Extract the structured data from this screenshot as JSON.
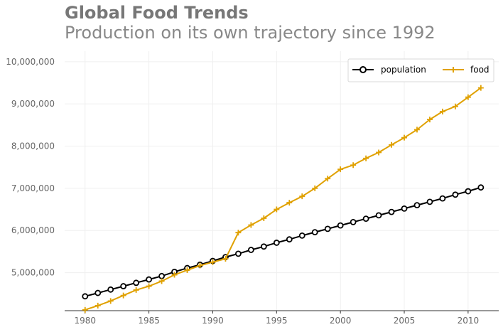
{
  "colors": {
    "title": "#777777",
    "subtitle": "#888888",
    "axis_text": "#666666",
    "grid": "#efefef",
    "axis": "#333333",
    "legend_border": "#d8d8d8",
    "population": "#000000",
    "food": "#e0a100"
  },
  "chart_data": {
    "type": "line",
    "title": "Global Food Trends",
    "subtitle": "Production on its own trajectory since 1992",
    "xlabel": "",
    "ylabel": "",
    "x": [
      1980,
      1981,
      1982,
      1983,
      1984,
      1985,
      1986,
      1987,
      1988,
      1989,
      1990,
      1991,
      1992,
      1993,
      1994,
      1995,
      1996,
      1997,
      1998,
      1999,
      2000,
      2001,
      2002,
      2003,
      2004,
      2005,
      2006,
      2007,
      2008,
      2009,
      2010,
      2011
    ],
    "x_ticks": [
      "1980",
      "1985",
      "1990",
      "1995",
      "2000",
      "2005",
      "2010"
    ],
    "xlim": [
      1978.4,
      2012.4
    ],
    "ylim": [
      4100000,
      10250000
    ],
    "y_ticks": [
      "5,000,000",
      "6,000,000",
      "7,000,000",
      "8,000,000",
      "9,000,000",
      "10,000,000"
    ],
    "grid": true,
    "legend_position": "top-right",
    "series": [
      {
        "name": "population",
        "color": "#000000",
        "marker": "circle",
        "values": [
          4440000,
          4520000,
          4600000,
          4680000,
          4760000,
          4840000,
          4920000,
          5020000,
          5110000,
          5190000,
          5280000,
          5370000,
          5450000,
          5540000,
          5620000,
          5710000,
          5790000,
          5880000,
          5960000,
          6040000,
          6120000,
          6200000,
          6280000,
          6360000,
          6440000,
          6520000,
          6600000,
          6680000,
          6760000,
          6850000,
          6930000,
          7020000
        ]
      },
      {
        "name": "food",
        "color": "#e0a100",
        "marker": "plus",
        "values": [
          4120000,
          4220000,
          4330000,
          4460000,
          4590000,
          4680000,
          4800000,
          4950000,
          5060000,
          5170000,
          5250000,
          5330000,
          5950000,
          6130000,
          6290000,
          6500000,
          6660000,
          6810000,
          7000000,
          7230000,
          7450000,
          7550000,
          7710000,
          7850000,
          8030000,
          8200000,
          8390000,
          8630000,
          8820000,
          8940000,
          9160000,
          9380000
        ]
      }
    ]
  }
}
